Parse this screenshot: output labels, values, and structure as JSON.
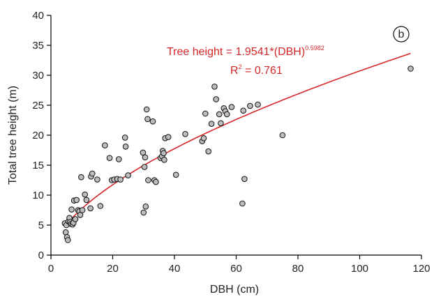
{
  "chart_data": {
    "type": "scatter",
    "xlabel": "DBH (cm)",
    "ylabel": "Total tree height (m)",
    "xlim": [
      0,
      120
    ],
    "ylim": [
      0,
      40
    ],
    "xticks": [
      0,
      20,
      40,
      60,
      80,
      100,
      120
    ],
    "yticks": [
      0,
      5,
      10,
      15,
      20,
      25,
      30,
      35,
      40
    ],
    "panel_label": "b",
    "grid": false,
    "points": [
      {
        "x": 4.5,
        "y": 5.3
      },
      {
        "x": 4.8,
        "y": 3.8
      },
      {
        "x": 5.0,
        "y": 5.0
      },
      {
        "x": 5.2,
        "y": 3.0
      },
      {
        "x": 5.5,
        "y": 2.5
      },
      {
        "x": 5.7,
        "y": 5.6
      },
      {
        "x": 6.0,
        "y": 6.2
      },
      {
        "x": 6.2,
        "y": 5.5
      },
      {
        "x": 6.5,
        "y": 5.2
      },
      {
        "x": 6.7,
        "y": 7.6
      },
      {
        "x": 7.0,
        "y": 5.1
      },
      {
        "x": 7.3,
        "y": 5.4
      },
      {
        "x": 7.5,
        "y": 9.1
      },
      {
        "x": 7.9,
        "y": 6.0
      },
      {
        "x": 8.3,
        "y": 9.2
      },
      {
        "x": 8.8,
        "y": 7.5
      },
      {
        "x": 9.2,
        "y": 7.3
      },
      {
        "x": 9.5,
        "y": 6.7
      },
      {
        "x": 9.8,
        "y": 13.0
      },
      {
        "x": 10.2,
        "y": 7.5
      },
      {
        "x": 11.0,
        "y": 10.1
      },
      {
        "x": 11.5,
        "y": 9.2
      },
      {
        "x": 12.8,
        "y": 7.8
      },
      {
        "x": 13.0,
        "y": 13.1
      },
      {
        "x": 13.4,
        "y": 13.6
      },
      {
        "x": 15.0,
        "y": 12.6
      },
      {
        "x": 16.0,
        "y": 8.2
      },
      {
        "x": 17.5,
        "y": 18.3
      },
      {
        "x": 19.0,
        "y": 16.2
      },
      {
        "x": 19.7,
        "y": 12.5
      },
      {
        "x": 20.5,
        "y": 12.6
      },
      {
        "x": 21.5,
        "y": 12.7
      },
      {
        "x": 22.0,
        "y": 16.0
      },
      {
        "x": 22.5,
        "y": 12.6
      },
      {
        "x": 24.0,
        "y": 19.6
      },
      {
        "x": 24.2,
        "y": 18.1
      },
      {
        "x": 25.0,
        "y": 13.3
      },
      {
        "x": 29.8,
        "y": 17.1
      },
      {
        "x": 30.0,
        "y": 7.1
      },
      {
        "x": 30.3,
        "y": 14.7
      },
      {
        "x": 30.5,
        "y": 16.3
      },
      {
        "x": 30.7,
        "y": 8.1
      },
      {
        "x": 31.0,
        "y": 24.3
      },
      {
        "x": 31.3,
        "y": 22.7
      },
      {
        "x": 31.5,
        "y": 12.5
      },
      {
        "x": 33.0,
        "y": 22.3
      },
      {
        "x": 33.5,
        "y": 12.5
      },
      {
        "x": 34.0,
        "y": 12.2
      },
      {
        "x": 35.5,
        "y": 16.2
      },
      {
        "x": 36.0,
        "y": 16.5
      },
      {
        "x": 36.2,
        "y": 17.4
      },
      {
        "x": 36.5,
        "y": 17.0
      },
      {
        "x": 36.7,
        "y": 15.9
      },
      {
        "x": 37.0,
        "y": 19.5
      },
      {
        "x": 38.0,
        "y": 19.7
      },
      {
        "x": 40.5,
        "y": 13.4
      },
      {
        "x": 43.5,
        "y": 20.2
      },
      {
        "x": 49.0,
        "y": 19.0
      },
      {
        "x": 49.5,
        "y": 19.5
      },
      {
        "x": 50.0,
        "y": 23.6
      },
      {
        "x": 51.0,
        "y": 17.3
      },
      {
        "x": 52.0,
        "y": 21.9
      },
      {
        "x": 53.0,
        "y": 28.1
      },
      {
        "x": 53.5,
        "y": 26.0
      },
      {
        "x": 54.5,
        "y": 23.5
      },
      {
        "x": 55.0,
        "y": 22.0
      },
      {
        "x": 56.0,
        "y": 24.5
      },
      {
        "x": 56.5,
        "y": 24.0
      },
      {
        "x": 57.0,
        "y": 23.5
      },
      {
        "x": 58.5,
        "y": 24.7
      },
      {
        "x": 62.0,
        "y": 8.6
      },
      {
        "x": 62.3,
        "y": 24.1
      },
      {
        "x": 62.7,
        "y": 12.7
      },
      {
        "x": 64.5,
        "y": 24.9
      },
      {
        "x": 67.0,
        "y": 25.1
      },
      {
        "x": 75.0,
        "y": 20.0
      },
      {
        "x": 116.5,
        "y": 31.1
      }
    ],
    "fit": {
      "a": 1.9541,
      "b": 0.5982,
      "x_range": [
        4.5,
        116.5
      ],
      "equation_text": "Tree height = 1.9541*(DBH)",
      "equation_exponent": "0.5982",
      "r2_text": "R",
      "r2_sup": "2",
      "r2_value_text": " = 0.761"
    },
    "colors": {
      "fit_line": "#d62728",
      "point_fill": "#bdbdbd",
      "point_stroke": "#111111"
    }
  }
}
